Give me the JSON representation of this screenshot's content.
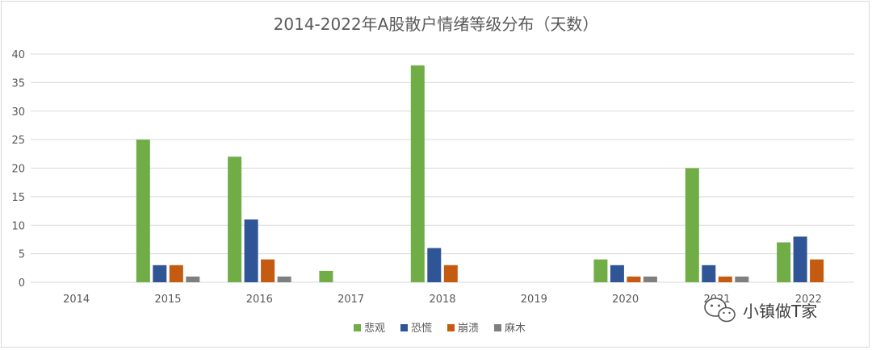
{
  "chart_data": {
    "type": "bar",
    "title": "2014-2022年A股散户情绪等级分布（天数）",
    "categories": [
      "2014",
      "2015",
      "2016",
      "2017",
      "2018",
      "2019",
      "2020",
      "2021",
      "2022"
    ],
    "series": [
      {
        "name": "悲观",
        "color": "#70ad47",
        "values": [
          0,
          25,
          22,
          2,
          38,
          0,
          4,
          20,
          7
        ]
      },
      {
        "name": "恐慌",
        "color": "#2f5597",
        "values": [
          0,
          3,
          11,
          0,
          6,
          0,
          3,
          3,
          8
        ]
      },
      {
        "name": "崩溃",
        "color": "#c55a11",
        "values": [
          0,
          3,
          4,
          0,
          3,
          0,
          1,
          1,
          4
        ]
      },
      {
        "name": "麻木",
        "color": "#7f7f7f",
        "values": [
          0,
          1,
          1,
          0,
          0,
          0,
          1,
          1,
          0
        ]
      }
    ],
    "ylim": [
      0,
      40
    ],
    "yticks": [
      0,
      5,
      10,
      15,
      20,
      25,
      30,
      35,
      40
    ],
    "grid": true,
    "legend": "bottom"
  },
  "watermark": {
    "text": "小镇做T家",
    "icon": "wechat-icon"
  }
}
